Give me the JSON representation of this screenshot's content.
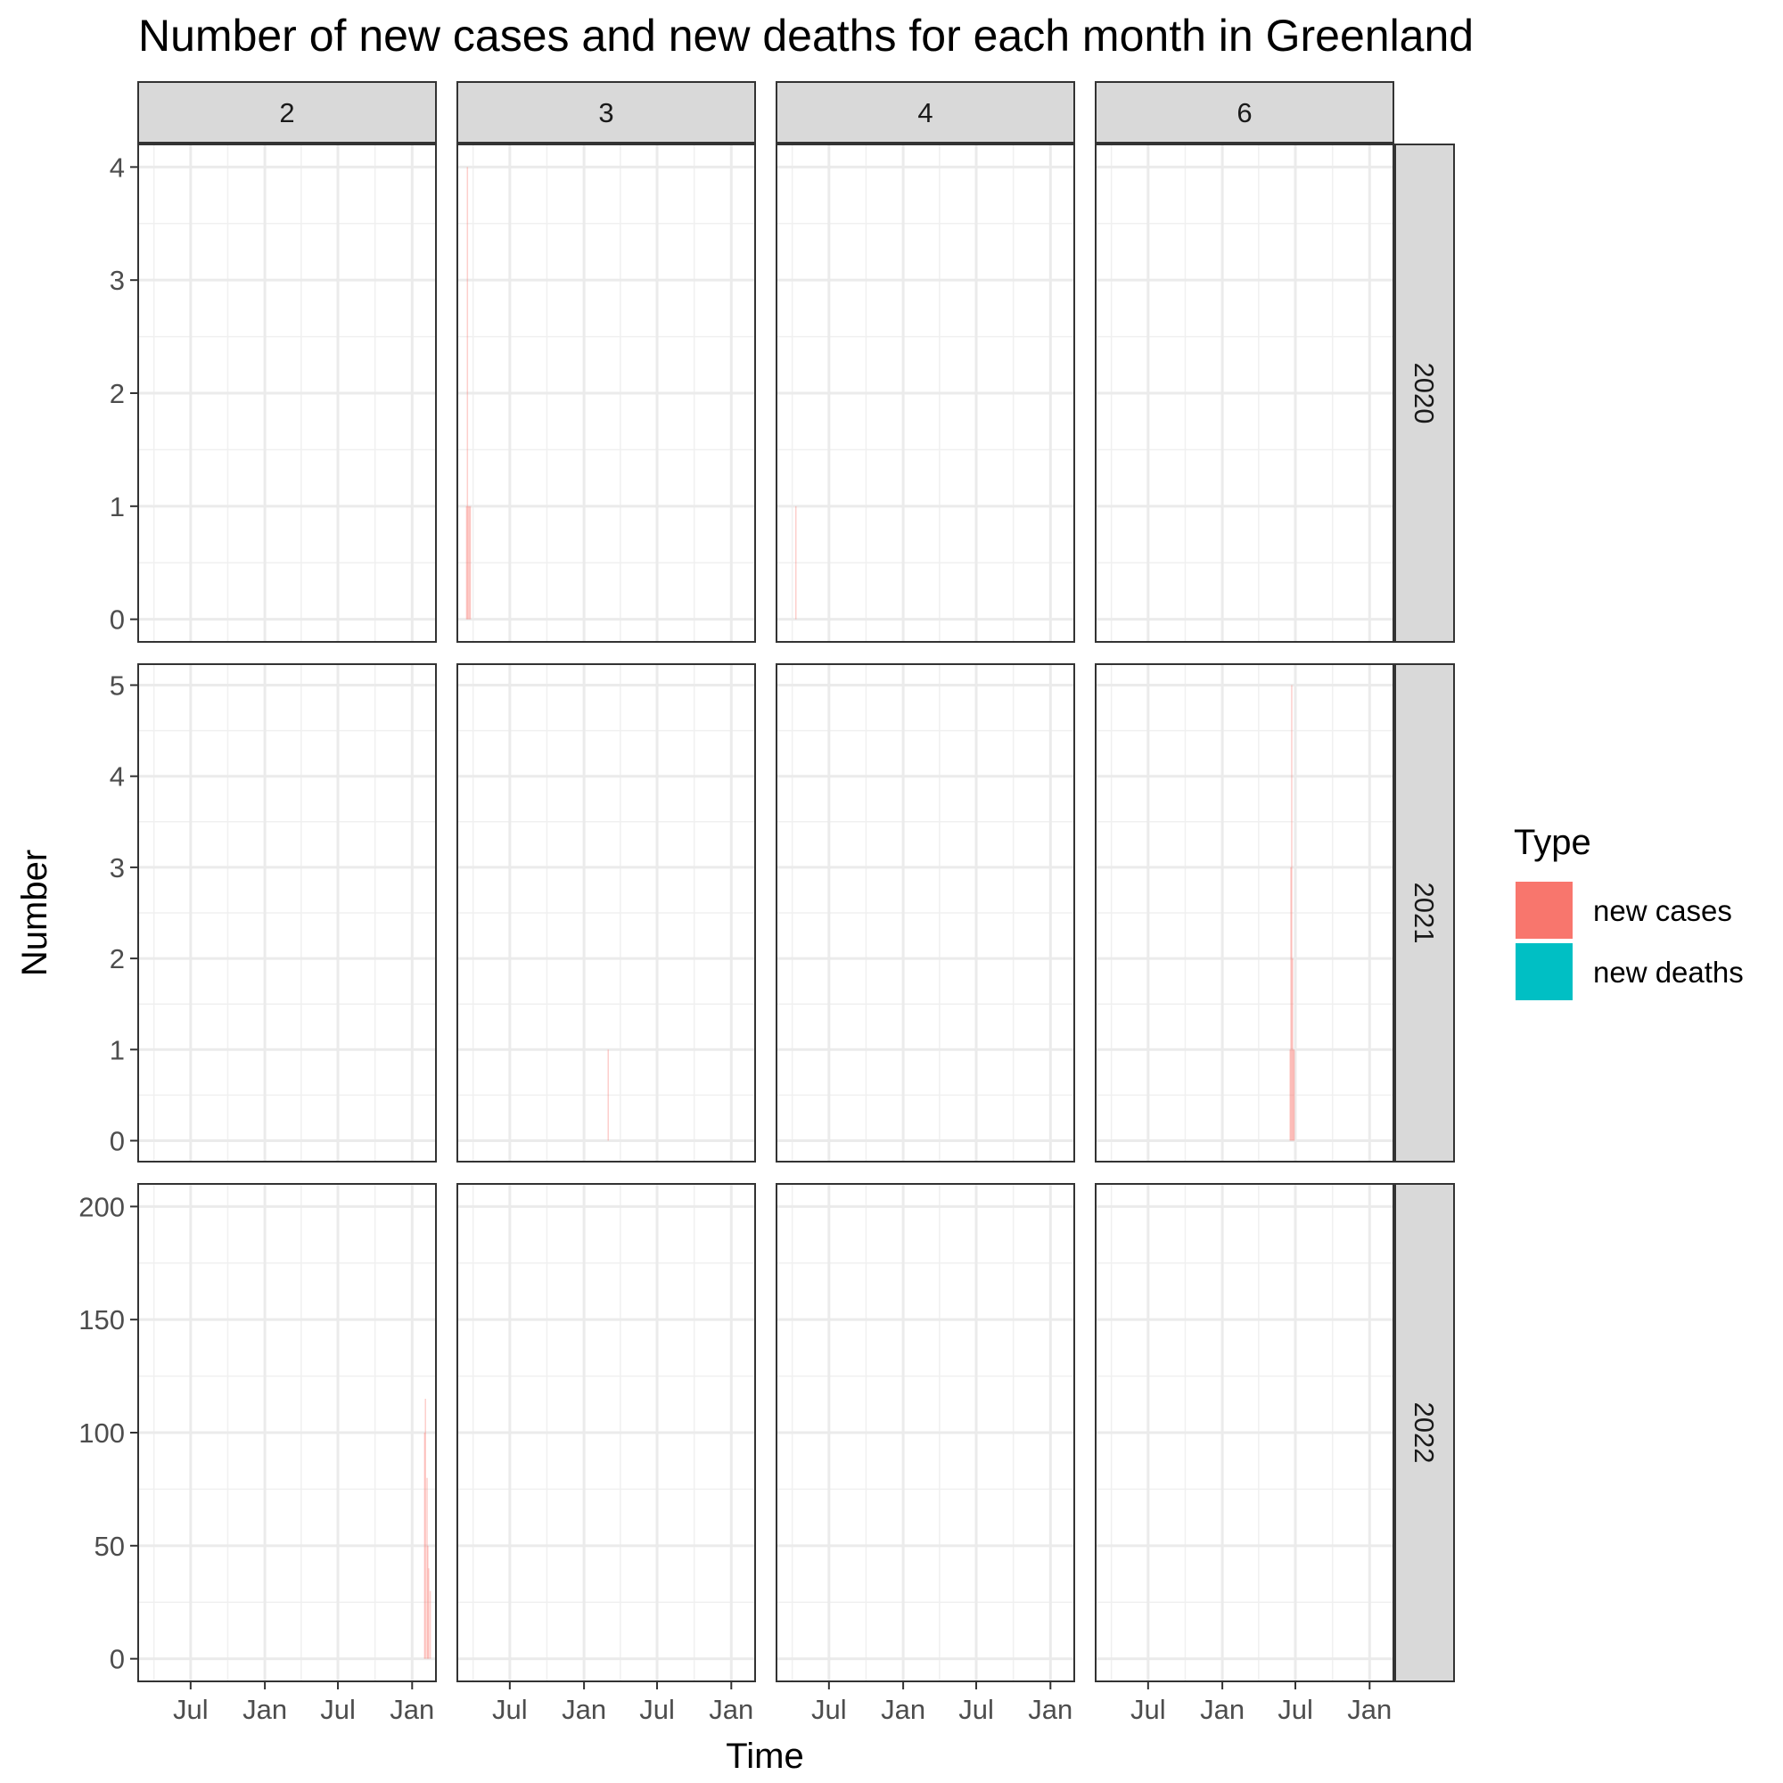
{
  "chart_data": {
    "type": "area",
    "title": "Number of new cases and new deaths for each month in Greenland",
    "xlabel": "Time",
    "ylabel": "Number",
    "legend": {
      "title": "Type",
      "placement": "right",
      "entries": [
        {
          "name": "new cases",
          "color": "#F8766D"
        },
        {
          "name": "new deaths",
          "color": "#00BFC4"
        }
      ]
    },
    "x_range": [
      "2020-02-22",
      "2022-03-01"
    ],
    "x_ticks": [
      {
        "date": "2020-07-01",
        "label": "Jul"
      },
      {
        "date": "2021-01-01",
        "label": "Jan"
      },
      {
        "date": "2021-07-01",
        "label": "Jul"
      },
      {
        "date": "2022-01-01",
        "label": "Jan"
      }
    ],
    "x_minor_ticks": [
      "2020-04-01",
      "2020-10-01",
      "2021-04-01",
      "2021-10-01"
    ],
    "columns": [
      "2",
      "3",
      "4",
      "6"
    ],
    "rows": [
      {
        "label": "2020",
        "ylim": [
          -0.2,
          4.2
        ],
        "yticks": [
          0,
          1,
          2,
          3,
          4
        ]
      },
      {
        "label": "2021",
        "ylim": [
          -0.23,
          5.23
        ],
        "yticks": [
          0,
          1,
          2,
          3,
          4,
          5
        ]
      },
      {
        "label": "2022",
        "ylim": [
          -10,
          210
        ],
        "yticks": [
          0,
          50,
          100,
          150,
          200
        ]
      }
    ],
    "grid": true,
    "panels": [
      {
        "column": "3",
        "row": "2020",
        "series": "new cases",
        "points": [
          [
            "2020-03-16",
            1
          ],
          [
            "2020-03-18",
            4
          ],
          [
            "2020-03-20",
            1
          ],
          [
            "2020-03-23",
            1
          ],
          [
            "2020-03-25",
            1
          ]
        ]
      },
      {
        "column": "4",
        "row": "2020",
        "series": "new cases",
        "points": [
          [
            "2020-04-10",
            1
          ]
        ]
      },
      {
        "column": "3",
        "row": "2021",
        "series": "new cases",
        "points": [
          [
            "2021-03-02",
            1
          ]
        ]
      },
      {
        "column": "6",
        "row": "2021",
        "series": "new cases",
        "points": [
          [
            "2021-06-18",
            1
          ],
          [
            "2021-06-20",
            3
          ],
          [
            "2021-06-22",
            5
          ],
          [
            "2021-06-24",
            2
          ],
          [
            "2021-06-26",
            1
          ],
          [
            "2021-06-28",
            1
          ]
        ]
      },
      {
        "column": "2",
        "row": "2022",
        "series": "new cases",
        "points": [
          [
            "2022-02-01",
            100
          ],
          [
            "2022-02-03",
            115
          ],
          [
            "2022-02-07",
            80
          ],
          [
            "2022-02-09",
            50
          ],
          [
            "2022-02-11",
            40
          ],
          [
            "2022-02-15",
            30
          ]
        ]
      }
    ]
  }
}
